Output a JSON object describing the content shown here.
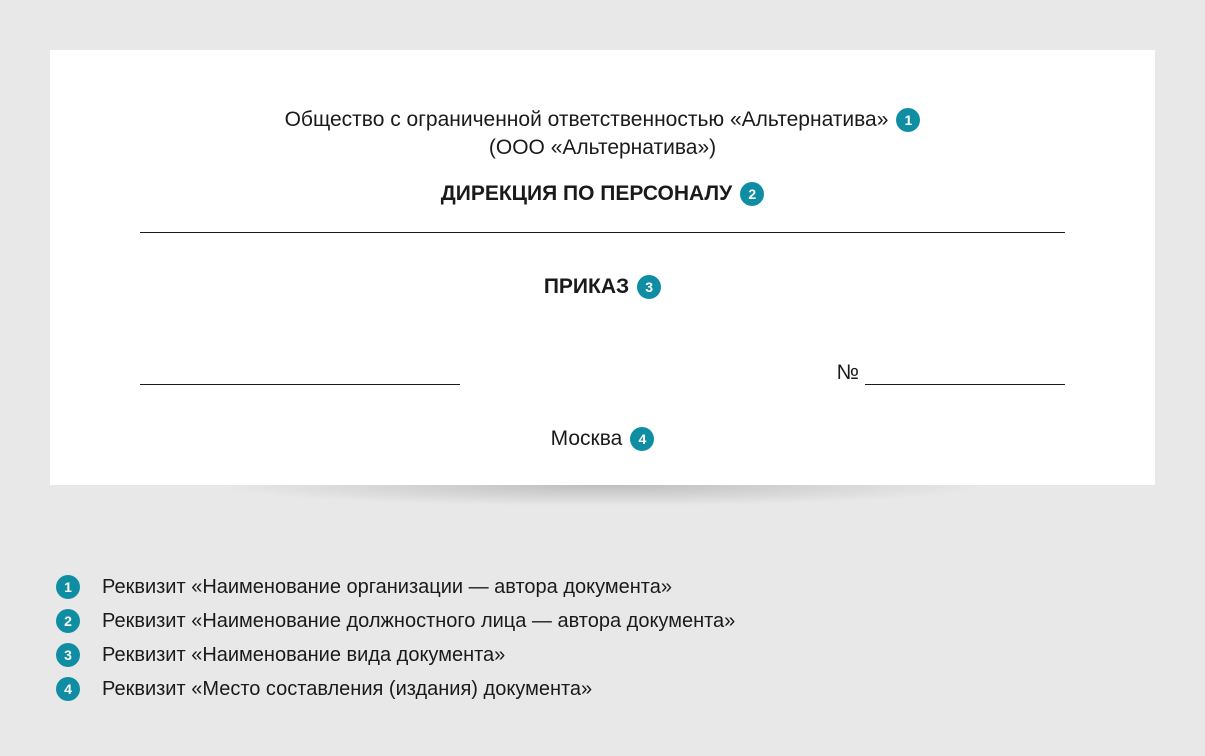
{
  "colors": {
    "page_bg": "#e8e8e8",
    "card_bg": "#ffffff",
    "text": "#1a1a1a",
    "badge_bg": "#0f8ea3",
    "badge_fg": "#ffffff",
    "rule": "#1a1a1a"
  },
  "typography": {
    "body_fontsize_pt": 16,
    "heading_weight": 700,
    "normal_weight": 500,
    "badge_fontsize_pt": 11
  },
  "document": {
    "org_full": "Общество с ограниченной ответственностью «Альтернатива»",
    "org_short": "(ООО «Альтернатива»)",
    "division": "ДИРЕКЦИЯ ПО ПЕРСОНАЛУ",
    "doc_type": "ПРИКАЗ",
    "number_label": "№",
    "place": "Москва"
  },
  "badges": {
    "b1": "1",
    "b2": "2",
    "b3": "3",
    "b4": "4"
  },
  "legend": {
    "items": [
      {
        "num": "1",
        "text": "Реквизит «Наименование организации — автора документа»"
      },
      {
        "num": "2",
        "text": "Реквизит «Наименование должностного лица — автора документа»"
      },
      {
        "num": "3",
        "text": "Реквизит «Наименование вида документа»"
      },
      {
        "num": "4",
        "text": "Реквизит «Место составления (издания) документа»"
      }
    ]
  }
}
